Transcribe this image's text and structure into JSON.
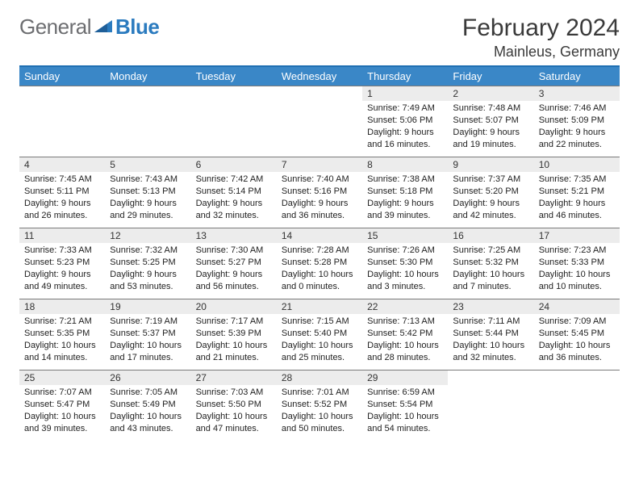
{
  "logo": {
    "general": "General",
    "blue": "Blue"
  },
  "title": "February 2024",
  "location": "Mainleus, Germany",
  "colors": {
    "header_bg": "#3a87c7",
    "divider": "#1f6fb2",
    "date_bg": "#ececec",
    "logo_gray": "#6d6e71",
    "logo_blue": "#2b7bbf"
  },
  "weekdays": [
    "Sunday",
    "Monday",
    "Tuesday",
    "Wednesday",
    "Thursday",
    "Friday",
    "Saturday"
  ],
  "weeks": [
    [
      null,
      null,
      null,
      null,
      {
        "d": "1",
        "sr": "7:49 AM",
        "ss": "5:06 PM",
        "dl": "9 hours and 16 minutes."
      },
      {
        "d": "2",
        "sr": "7:48 AM",
        "ss": "5:07 PM",
        "dl": "9 hours and 19 minutes."
      },
      {
        "d": "3",
        "sr": "7:46 AM",
        "ss": "5:09 PM",
        "dl": "9 hours and 22 minutes."
      }
    ],
    [
      {
        "d": "4",
        "sr": "7:45 AM",
        "ss": "5:11 PM",
        "dl": "9 hours and 26 minutes."
      },
      {
        "d": "5",
        "sr": "7:43 AM",
        "ss": "5:13 PM",
        "dl": "9 hours and 29 minutes."
      },
      {
        "d": "6",
        "sr": "7:42 AM",
        "ss": "5:14 PM",
        "dl": "9 hours and 32 minutes."
      },
      {
        "d": "7",
        "sr": "7:40 AM",
        "ss": "5:16 PM",
        "dl": "9 hours and 36 minutes."
      },
      {
        "d": "8",
        "sr": "7:38 AM",
        "ss": "5:18 PM",
        "dl": "9 hours and 39 minutes."
      },
      {
        "d": "9",
        "sr": "7:37 AM",
        "ss": "5:20 PM",
        "dl": "9 hours and 42 minutes."
      },
      {
        "d": "10",
        "sr": "7:35 AM",
        "ss": "5:21 PM",
        "dl": "9 hours and 46 minutes."
      }
    ],
    [
      {
        "d": "11",
        "sr": "7:33 AM",
        "ss": "5:23 PM",
        "dl": "9 hours and 49 minutes."
      },
      {
        "d": "12",
        "sr": "7:32 AM",
        "ss": "5:25 PM",
        "dl": "9 hours and 53 minutes."
      },
      {
        "d": "13",
        "sr": "7:30 AM",
        "ss": "5:27 PM",
        "dl": "9 hours and 56 minutes."
      },
      {
        "d": "14",
        "sr": "7:28 AM",
        "ss": "5:28 PM",
        "dl": "10 hours and 0 minutes."
      },
      {
        "d": "15",
        "sr": "7:26 AM",
        "ss": "5:30 PM",
        "dl": "10 hours and 3 minutes."
      },
      {
        "d": "16",
        "sr": "7:25 AM",
        "ss": "5:32 PM",
        "dl": "10 hours and 7 minutes."
      },
      {
        "d": "17",
        "sr": "7:23 AM",
        "ss": "5:33 PM",
        "dl": "10 hours and 10 minutes."
      }
    ],
    [
      {
        "d": "18",
        "sr": "7:21 AM",
        "ss": "5:35 PM",
        "dl": "10 hours and 14 minutes."
      },
      {
        "d": "19",
        "sr": "7:19 AM",
        "ss": "5:37 PM",
        "dl": "10 hours and 17 minutes."
      },
      {
        "d": "20",
        "sr": "7:17 AM",
        "ss": "5:39 PM",
        "dl": "10 hours and 21 minutes."
      },
      {
        "d": "21",
        "sr": "7:15 AM",
        "ss": "5:40 PM",
        "dl": "10 hours and 25 minutes."
      },
      {
        "d": "22",
        "sr": "7:13 AM",
        "ss": "5:42 PM",
        "dl": "10 hours and 28 minutes."
      },
      {
        "d": "23",
        "sr": "7:11 AM",
        "ss": "5:44 PM",
        "dl": "10 hours and 32 minutes."
      },
      {
        "d": "24",
        "sr": "7:09 AM",
        "ss": "5:45 PM",
        "dl": "10 hours and 36 minutes."
      }
    ],
    [
      {
        "d": "25",
        "sr": "7:07 AM",
        "ss": "5:47 PM",
        "dl": "10 hours and 39 minutes."
      },
      {
        "d": "26",
        "sr": "7:05 AM",
        "ss": "5:49 PM",
        "dl": "10 hours and 43 minutes."
      },
      {
        "d": "27",
        "sr": "7:03 AM",
        "ss": "5:50 PM",
        "dl": "10 hours and 47 minutes."
      },
      {
        "d": "28",
        "sr": "7:01 AM",
        "ss": "5:52 PM",
        "dl": "10 hours and 50 minutes."
      },
      {
        "d": "29",
        "sr": "6:59 AM",
        "ss": "5:54 PM",
        "dl": "10 hours and 54 minutes."
      },
      null,
      null
    ]
  ],
  "labels": {
    "sunrise": "Sunrise: ",
    "sunset": "Sunset: ",
    "daylight": "Daylight: "
  }
}
